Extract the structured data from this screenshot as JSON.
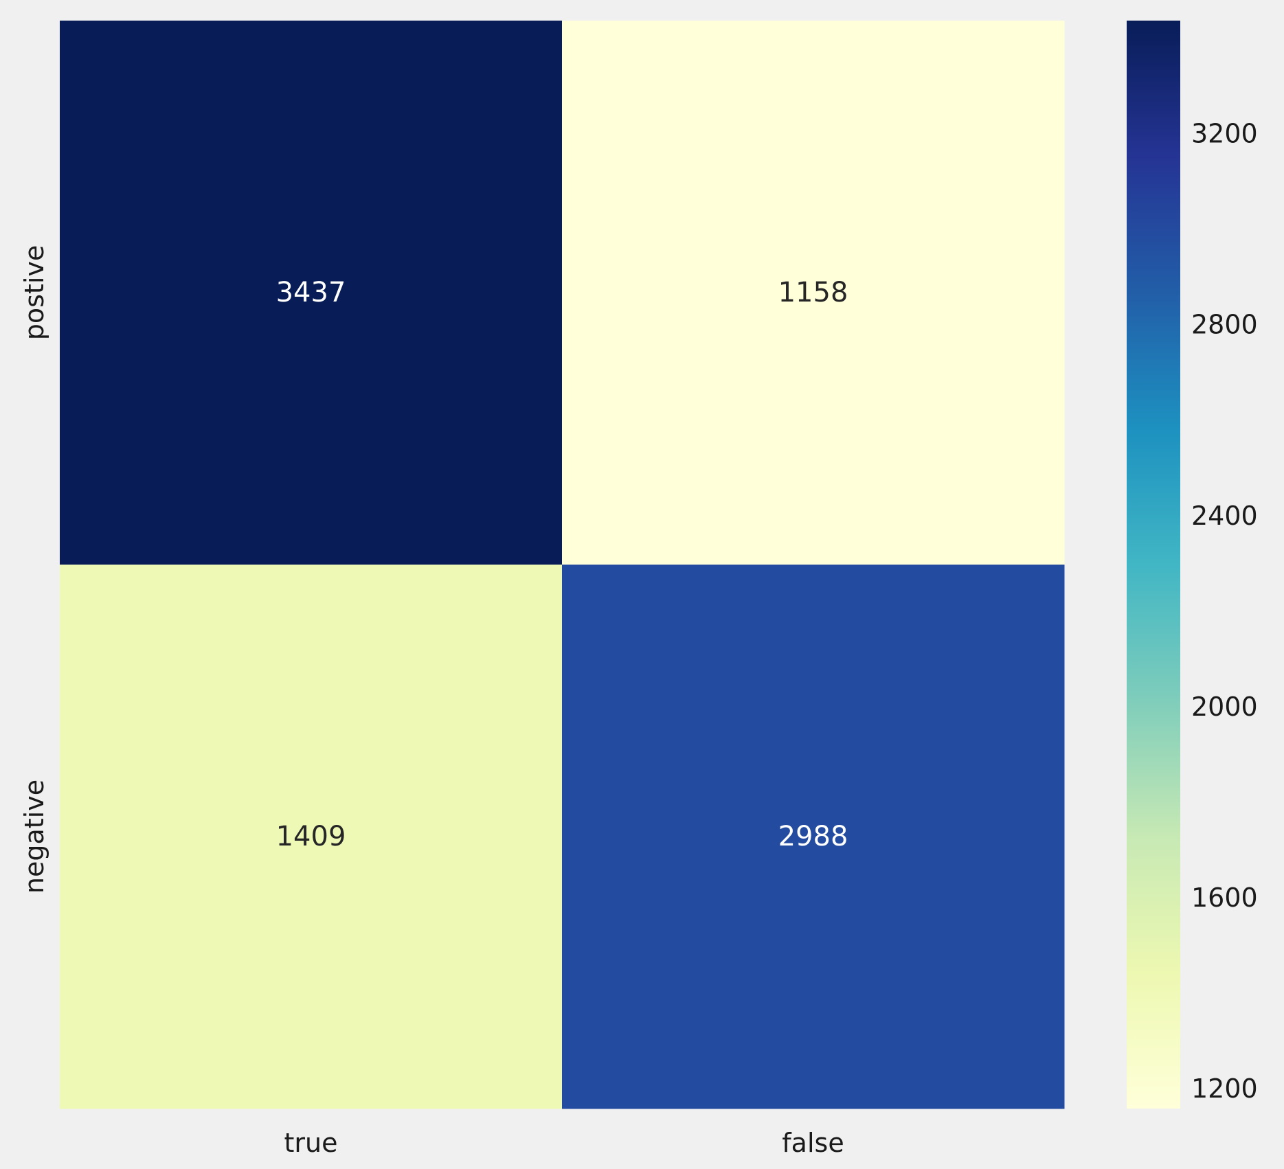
{
  "chart_data": {
    "type": "heatmap",
    "title": "",
    "xlabel": "",
    "ylabel": "",
    "x_categories": [
      "true",
      "false"
    ],
    "y_categories": [
      "postive",
      "negative"
    ],
    "values": [
      [
        3437,
        1158
      ],
      [
        1409,
        2988
      ]
    ],
    "colormap": "YlGnBu",
    "colorbar": {
      "range": [
        1158,
        3437
      ],
      "ticks": [
        1200,
        1600,
        2000,
        2400,
        2800,
        3200
      ]
    },
    "colors": {
      "background": "#f0f0f0",
      "dark_text": "#262626",
      "light_text": "#ffffff"
    }
  }
}
